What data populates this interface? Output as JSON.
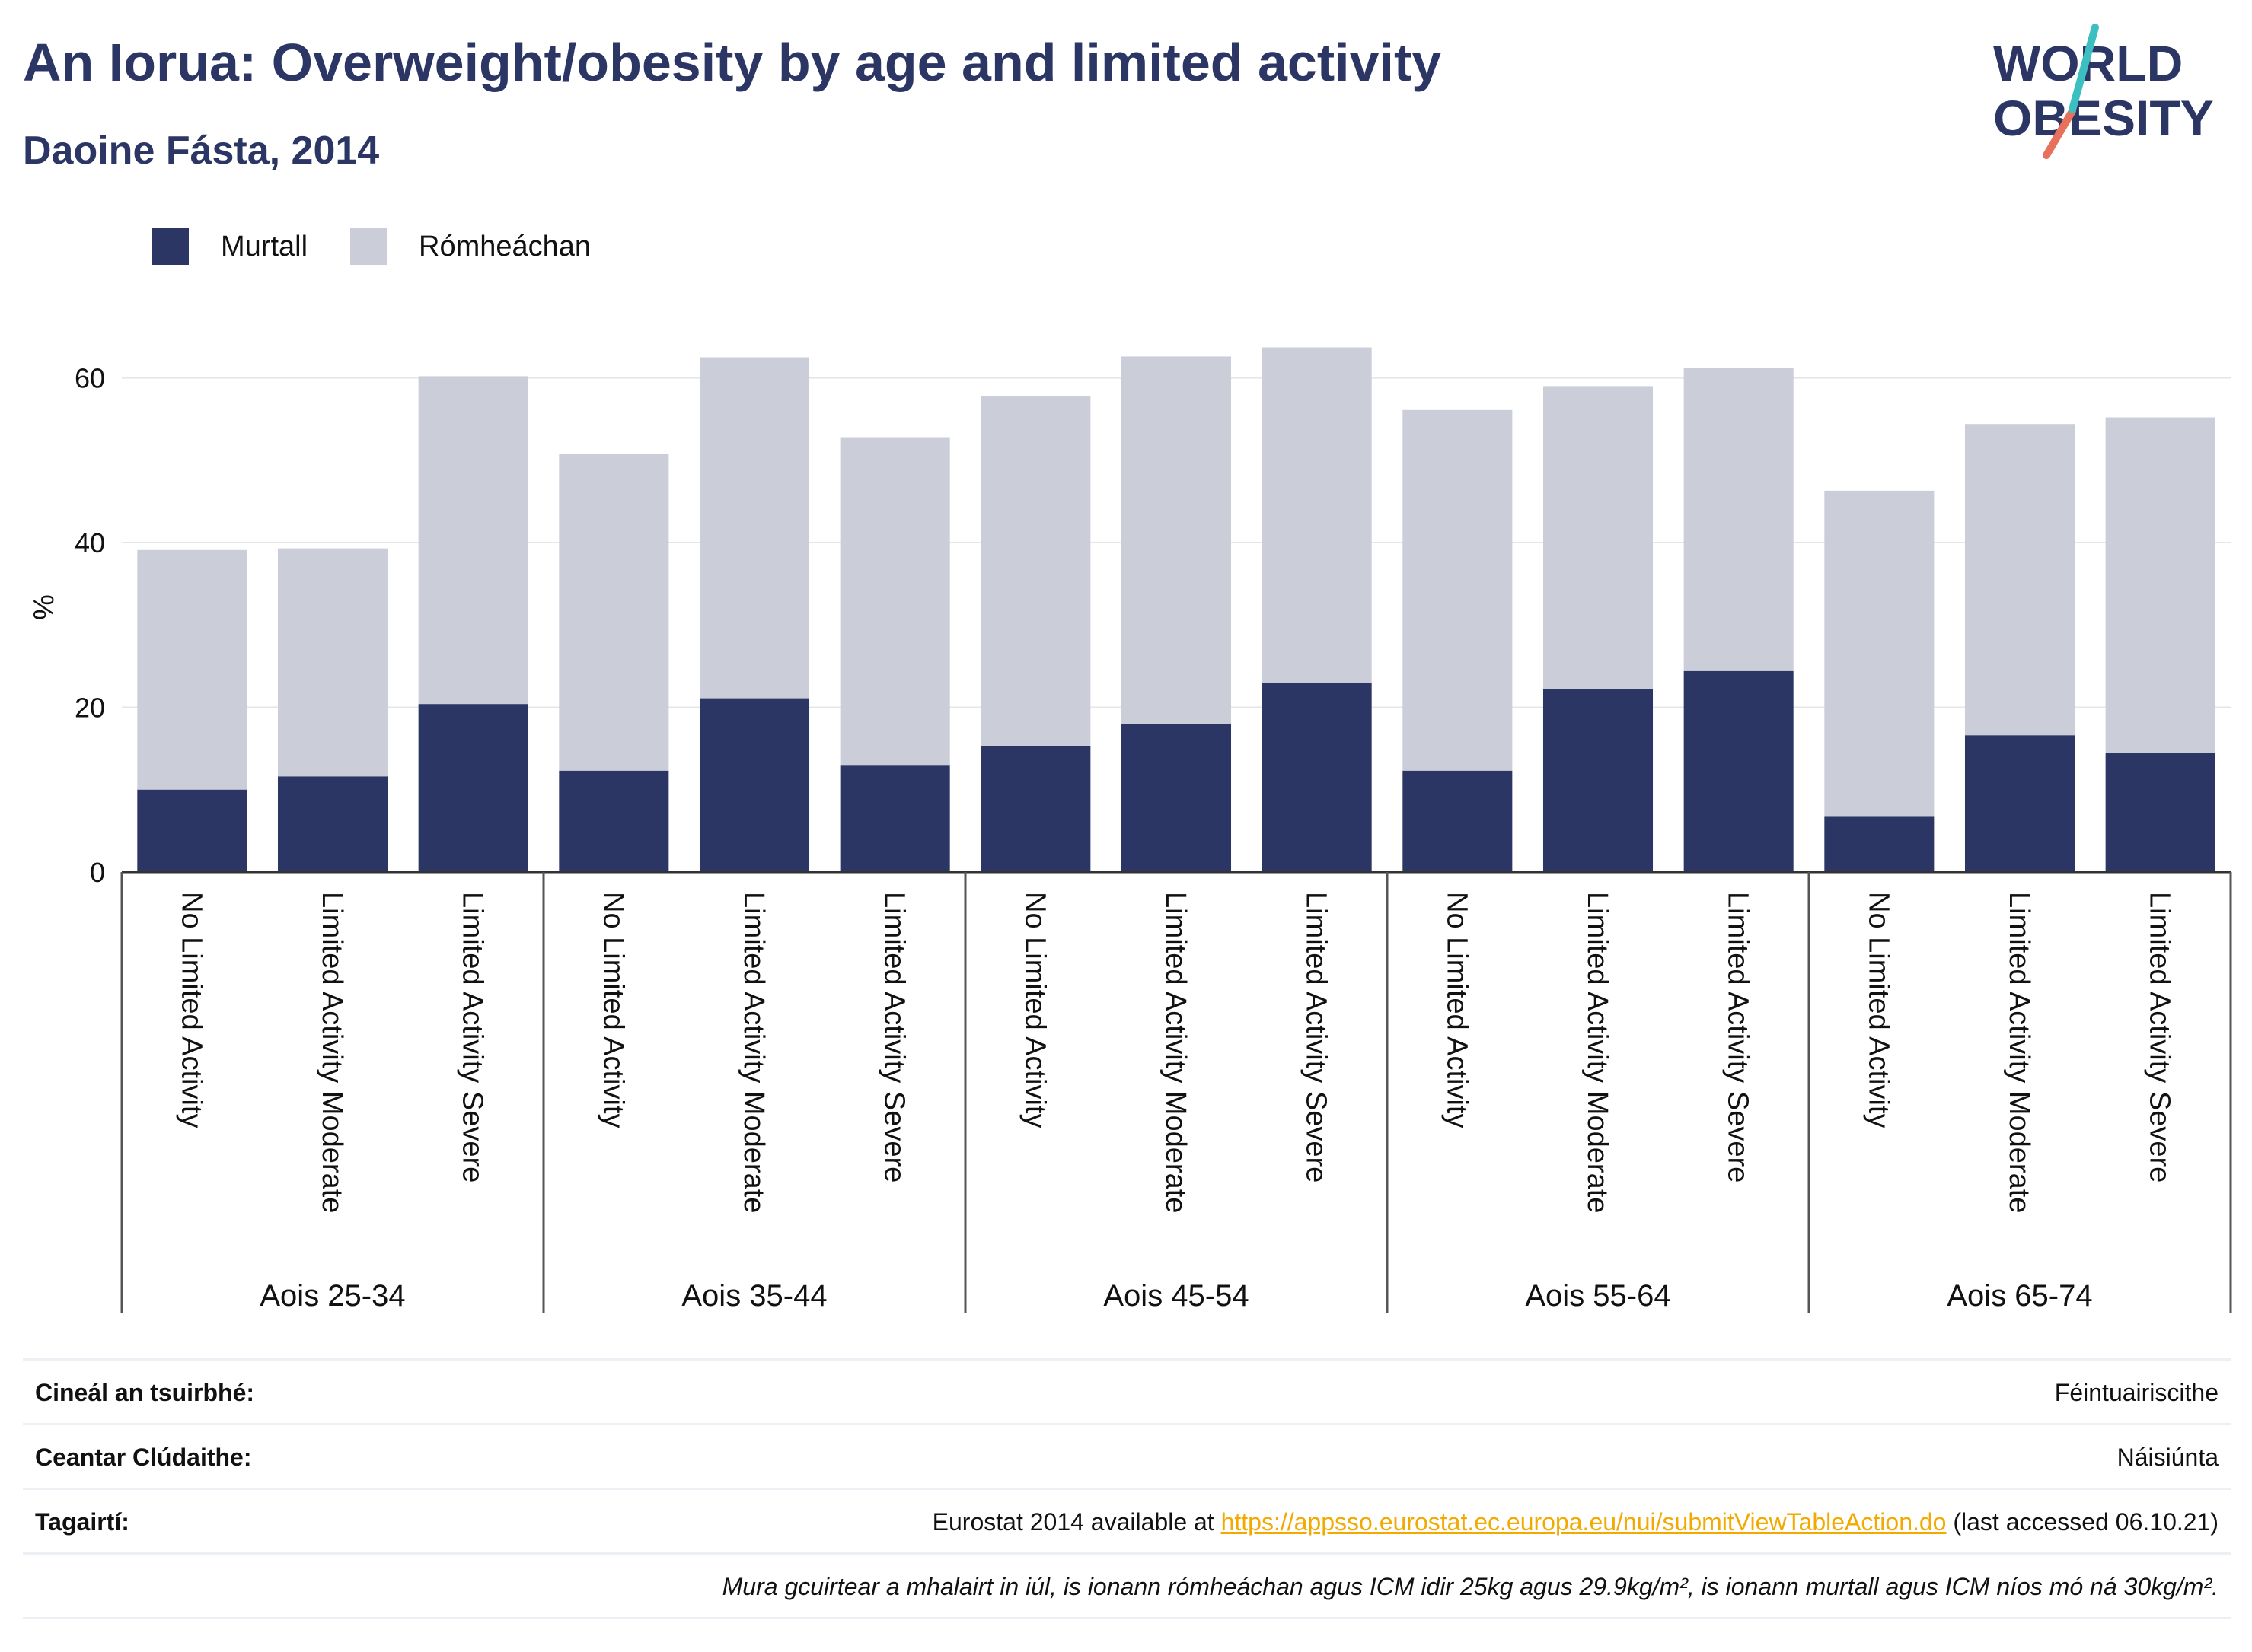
{
  "header": {
    "title": "An Iorua: Overweight/obesity by age and limited activity",
    "subtitle": "Daoine Fásta, 2014",
    "logo_line1": "WORLD",
    "logo_line2": "OBESITY"
  },
  "colors": {
    "obese": "#2b3664",
    "overweight": "#cbcdd9",
    "title": "#2b3664",
    "link": "#f2a900",
    "logo_teal": "#3cbfc0",
    "logo_coral": "#e8715c"
  },
  "chart_data": {
    "type": "bar",
    "stacked": true,
    "ylabel": "%",
    "ylim": [
      0,
      68
    ],
    "yticks": [
      0,
      20,
      40,
      60
    ],
    "grid": true,
    "legend_position": "top-left",
    "groups": [
      {
        "label": "Aois 25-34",
        "categories": [
          "No Limited Activity",
          "Limited Activity Moderate",
          "Limited Activity Severe"
        ]
      },
      {
        "label": "Aois 35-44",
        "categories": [
          "No Limited Activity",
          "Limited Activity Moderate",
          "Limited Activity Severe"
        ]
      },
      {
        "label": "Aois 45-54",
        "categories": [
          "No Limited Activity",
          "Limited Activity Moderate",
          "Limited Activity Severe"
        ]
      },
      {
        "label": "Aois 55-64",
        "categories": [
          "No Limited Activity",
          "Limited Activity Moderate",
          "Limited Activity Severe"
        ]
      },
      {
        "label": "Aois 65-74",
        "categories": [
          "No Limited Activity",
          "Limited Activity Moderate",
          "Limited Activity Severe"
        ]
      }
    ],
    "series": [
      {
        "name": "Murtall",
        "values": [
          10.0,
          11.6,
          20.4,
          12.3,
          21.1,
          13.0,
          15.3,
          18.0,
          23.0,
          12.3,
          22.2,
          24.4,
          6.7,
          16.6,
          14.5
        ]
      },
      {
        "name": "Rómheáchan",
        "values": [
          29.1,
          27.7,
          39.8,
          38.5,
          41.4,
          39.8,
          42.5,
          44.6,
          40.7,
          43.8,
          36.8,
          36.8,
          39.6,
          37.8,
          40.7
        ]
      }
    ]
  },
  "info": {
    "survey_label": "Cineál an tsuirbhé:",
    "survey_value": "Féintuairiscithe",
    "area_label": "Ceantar Clúdaithe:",
    "area_value": "Náisiúnta",
    "refs_label": "Tagairtí:",
    "refs_prefix": "Eurostat 2014 available at ",
    "refs_link": "https://appsso.eurostat.ec.europa.eu/nui/submitViewTableAction.do",
    "refs_suffix": " (last accessed 06.10.21)",
    "note": "Mura gcuirtear a mhalairt in iúl, is ionann rómheáchan agus ICM idir 25kg agus 29.9kg/m², is ionann murtall agus ICM níos mó ná 30kg/m²."
  }
}
